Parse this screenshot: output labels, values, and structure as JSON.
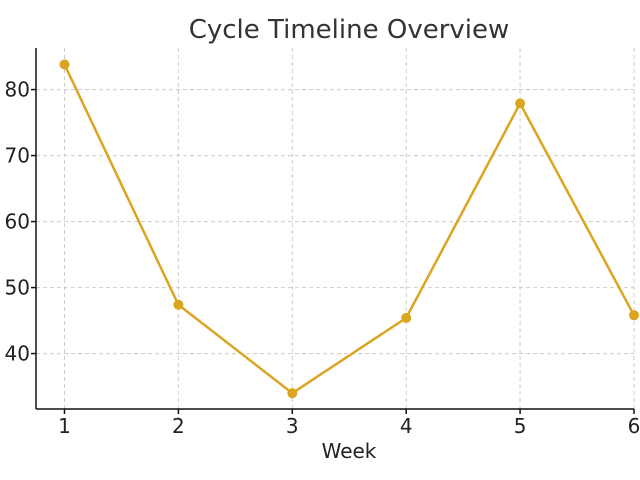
{
  "chart_data": {
    "type": "line",
    "title": "Cycle Timeline Overview",
    "xlabel": "Week",
    "ylabel": "",
    "x": [
      1,
      2,
      3,
      4,
      5,
      6
    ],
    "series": [
      {
        "values": [
          83.8,
          47.4,
          34.0,
          45.4,
          77.9,
          45.8
        ],
        "color": "#daa520"
      }
    ],
    "xticks": [
      1,
      2,
      3,
      4,
      5,
      6
    ],
    "yticks": [
      40,
      50,
      60,
      70,
      80
    ],
    "xlim": [
      0.75,
      6.0
    ],
    "ylim": [
      31.6,
      86.3
    ],
    "grid": true,
    "legend": "none",
    "marker": "circle"
  }
}
